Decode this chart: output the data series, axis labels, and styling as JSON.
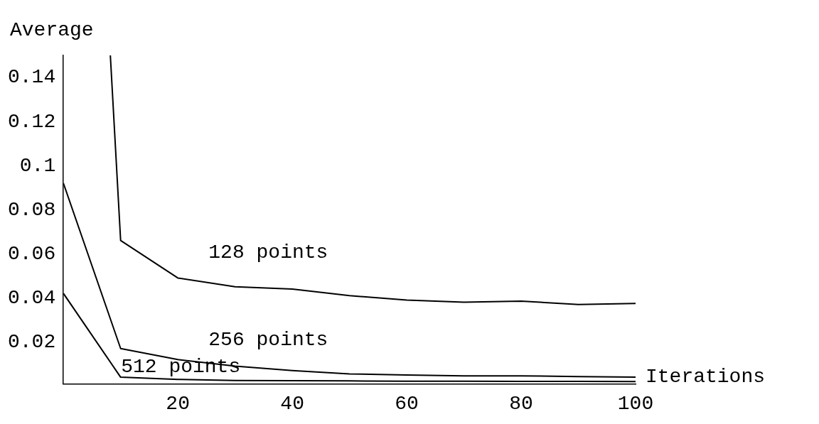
{
  "chart_data": {
    "type": "line",
    "xlabel": "Iterations",
    "ylabel": "Average",
    "xlim": [
      0,
      100
    ],
    "xticks": [
      20,
      40,
      60,
      80,
      100
    ],
    "ylim": [
      0.001,
      0.15
    ],
    "yticks": [
      0.02,
      0.04,
      0.06,
      0.08,
      0.1,
      0.12,
      0.14
    ],
    "grid": false,
    "legend": false,
    "marker": "none",
    "line_style": "solid",
    "series": [
      {
        "color": "#000000",
        "x": [
          8.2,
          10,
          20,
          30,
          40,
          50,
          60,
          70,
          80,
          90,
          100
        ],
        "values": [
          0.15,
          0.066,
          0.049,
          0.045,
          0.044,
          0.041,
          0.039,
          0.038,
          0.0385,
          0.037,
          0.0375
        ]
      },
      {
        "color": "#000000",
        "x": [
          0,
          10,
          20,
          30,
          40,
          50,
          60,
          70,
          80,
          90,
          100
        ],
        "values": [
          0.092,
          0.017,
          0.012,
          0.009,
          0.007,
          0.0055,
          0.005,
          0.0046,
          0.0046,
          0.0043,
          0.004
        ]
      },
      {
        "color": "#000000",
        "x": [
          0,
          10,
          20,
          30,
          40,
          50,
          60,
          70,
          80,
          90,
          100
        ],
        "values": [
          0.042,
          0.004,
          0.003,
          0.0025,
          0.0024,
          0.0023,
          0.0022,
          0.0022,
          0.0021,
          0.0021,
          0.002
        ]
      }
    ],
    "annotations": [
      "128 points",
      "256 points",
      "512 points"
    ]
  }
}
